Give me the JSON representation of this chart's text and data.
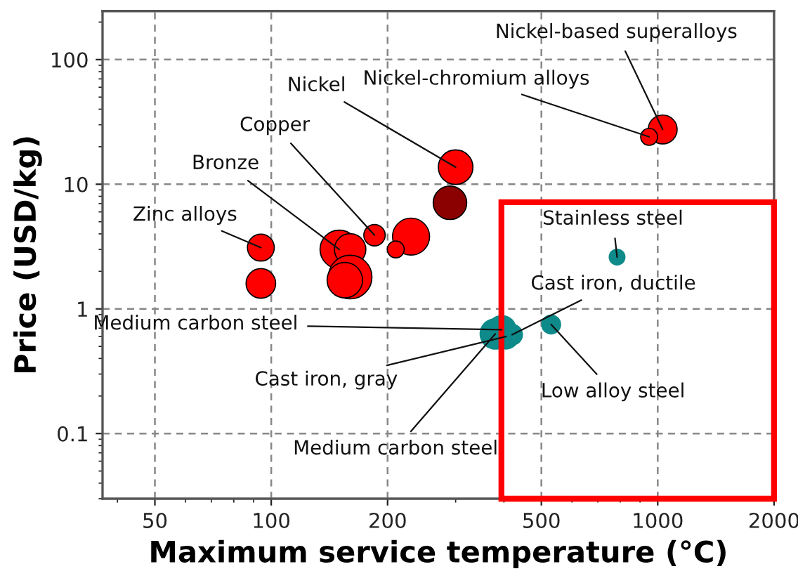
{
  "chart_data": {
    "type": "bubble",
    "xlabel": "Maximum service temperature (°C)",
    "ylabel": "Price (USD/kg)",
    "log": "xy",
    "xlim": [
      36.6,
      2000
    ],
    "ylim": [
      0.03,
      245
    ],
    "xticks": [
      50,
      100,
      200,
      500,
      1000,
      2000
    ],
    "yticks": [
      0.1,
      1,
      10,
      100
    ],
    "grid": true,
    "series": [
      {
        "x": [
          94,
          94,
          150,
          160,
          230,
          185,
          210,
          300,
          290,
          160,
          155,
          1030,
          950,
          785,
          395,
          405,
          380,
          420,
          530
        ],
        "values": [
          3.1,
          1.6,
          3.0,
          3.0,
          3.8,
          3.9,
          3.0,
          13.7,
          7.1,
          1.8,
          1.7,
          27.5,
          24,
          2.6,
          0.68,
          0.6,
          0.63,
          0.62,
          0.75
        ],
        "sizes": [
          0.38,
          0.46,
          0.78,
          0.52,
          0.72,
          0.24,
          0.15,
          0.63,
          0.59,
          1,
          0.66,
          0.44,
          0.15,
          0.15,
          0.46,
          0.36,
          0.52,
          0.25,
          0.21
        ],
        "colors": [
          "#ff0000",
          "#ff0000",
          "#ff0000",
          "#ff0000",
          "#ff0000",
          "#ff0000",
          "#ff0000",
          "#ff0000",
          "#8b0000",
          "#ff0000",
          "#ff0000",
          "#ff0000",
          "#ff0000",
          "#0e8a8a",
          "#0e8a8a",
          "#0e8a8a",
          "#0e8a8a",
          "#0e8a8a",
          "#0e8a8a"
        ]
      }
    ],
    "annotations": [
      {
        "text": "Nickel-based superalloys",
        "x": 1030,
        "y": 27.5
      },
      {
        "text": "Nickel-chromium alloys",
        "x": 950,
        "y": 24
      },
      {
        "text": "Nickel",
        "x": 300,
        "y": 13.7
      },
      {
        "text": "Copper",
        "x": 185,
        "y": 3.9
      },
      {
        "text": "Bronze",
        "x": 150,
        "y": 3.0
      },
      {
        "text": "Zinc alloys",
        "x": 94,
        "y": 3.1
      },
      {
        "text": "Stainless steel",
        "x": 785,
        "y": 2.6
      },
      {
        "text": "Cast iron, ductile",
        "x": 420,
        "y": 0.62
      },
      {
        "text": "Medium carbon steel",
        "x": 395,
        "y": 0.68
      },
      {
        "text": "Cast iron, gray",
        "x": 405,
        "y": 0.6
      },
      {
        "text": "Low alloy steel",
        "x": 530,
        "y": 0.75
      },
      {
        "text": "Medium carbon steel",
        "x": 380,
        "y": 0.63
      }
    ]
  }
}
